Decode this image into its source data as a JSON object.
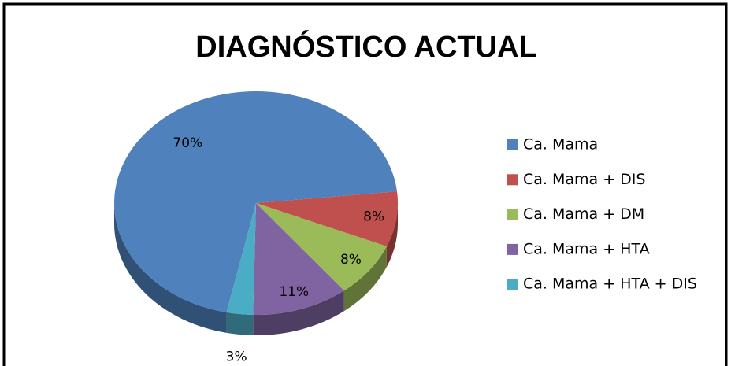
{
  "chart_data": {
    "type": "pie3d",
    "title": "DIAGNÓSTICO ACTUAL",
    "categories": [
      "Ca. Mama",
      "Ca. Mama + DIS",
      "Ca. Mama + DM",
      "Ca. Mama + HTA",
      "Ca. Mama + HTA + DIS"
    ],
    "values": [
      70,
      8,
      8,
      11,
      3
    ],
    "value_labels": [
      "70%",
      "8%",
      "8%",
      "11%",
      "3%"
    ],
    "colors": [
      "#4f81bd",
      "#c0504d",
      "#9bbb59",
      "#8064a2",
      "#4bacc6"
    ],
    "legend": "right"
  }
}
